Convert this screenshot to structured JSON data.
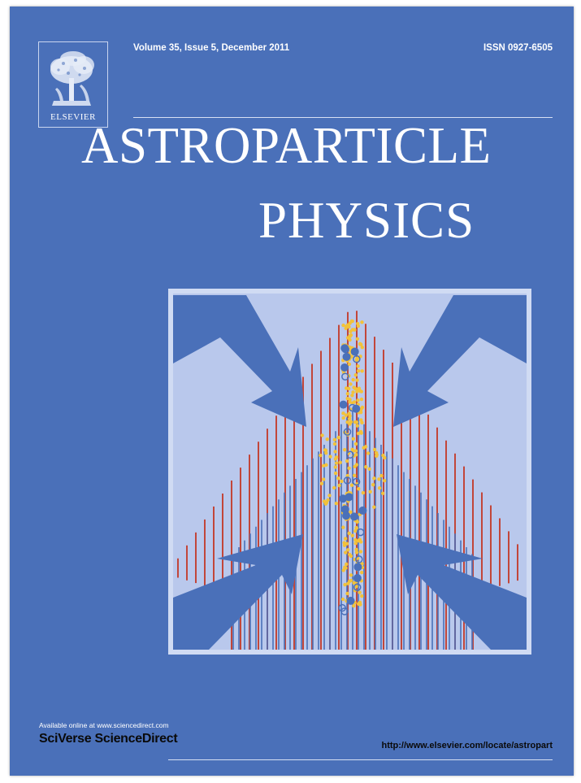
{
  "publisher": {
    "name": "ELSEVIER",
    "logo_icon": "elsevier-tree-icon"
  },
  "issue_info": "Volume 35, Issue 5, December 2011",
  "issn": "ISSN 0927-6505",
  "title": {
    "line1": "ASTROPARTICLE",
    "line2": "PHYSICS"
  },
  "illustration": {
    "icon": "particle-shower-illustration",
    "colors": {
      "background": "#4a70b9",
      "panel": "#b9c8ec",
      "arrows": "#4a70b9",
      "red_lines": "#c2463a",
      "blue_lines": "#4a70b9",
      "particles": "#f2c23a"
    }
  },
  "footer": {
    "available": "Available online at www.sciencedirect.com",
    "brand": "SciVerse ScienceDirect",
    "url": "http://www.elsevier.com/locate/astropart"
  }
}
